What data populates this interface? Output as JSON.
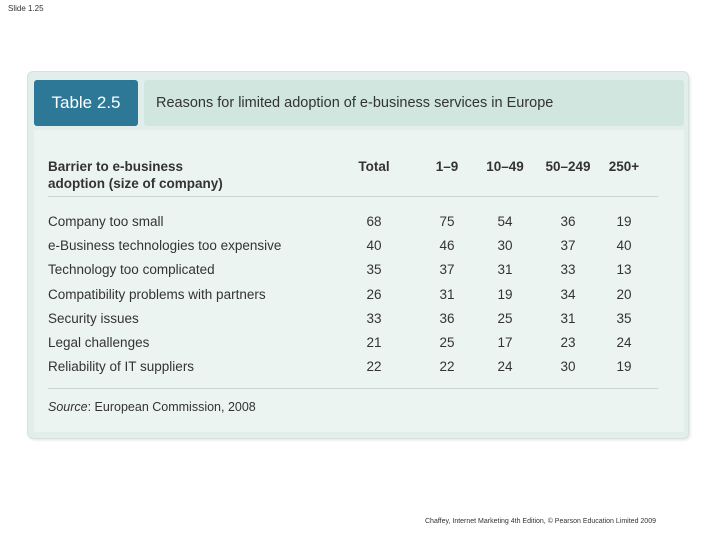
{
  "slide": {
    "label": "Slide 1.25"
  },
  "footer": {
    "text": "Chaffey, Internet Marketing 4th Edition, © Pearson Education Limited 2009"
  },
  "table": {
    "number": "Table 2.5",
    "caption": "Reasons for limited adoption of e-business services in Europe",
    "header": {
      "label_line1": "Barrier to e-business",
      "label_line2": "adoption (size of company)",
      "columns": [
        "Total",
        "1–9",
        "10–49",
        "50–249",
        "250+"
      ]
    },
    "rows": [
      {
        "label": "Company too small",
        "values": [
          "68",
          "75",
          "54",
          "36",
          "19"
        ]
      },
      {
        "label": "e-Business technologies too expensive",
        "values": [
          "40",
          "46",
          "30",
          "37",
          "40"
        ]
      },
      {
        "label": "Technology too complicated",
        "values": [
          "35",
          "37",
          "31",
          "33",
          "13"
        ]
      },
      {
        "label": "Compatibility problems with partners",
        "values": [
          "26",
          "31",
          "19",
          "34",
          "20"
        ]
      },
      {
        "label": "Security issues",
        "values": [
          "33",
          "36",
          "25",
          "31",
          "35"
        ]
      },
      {
        "label": "Legal challenges",
        "values": [
          "21",
          "25",
          "17",
          "23",
          "24"
        ]
      },
      {
        "label": "Reliability of IT suppliers",
        "values": [
          "22",
          "22",
          "24",
          "30",
          "19"
        ]
      }
    ],
    "source": {
      "prefix": "Source",
      "text": ": European Commission, 2008"
    }
  },
  "colors": {
    "badge": "#2e7897",
    "caption_bg": "#d0e6de",
    "frame_bg": "#e2eeeb"
  }
}
